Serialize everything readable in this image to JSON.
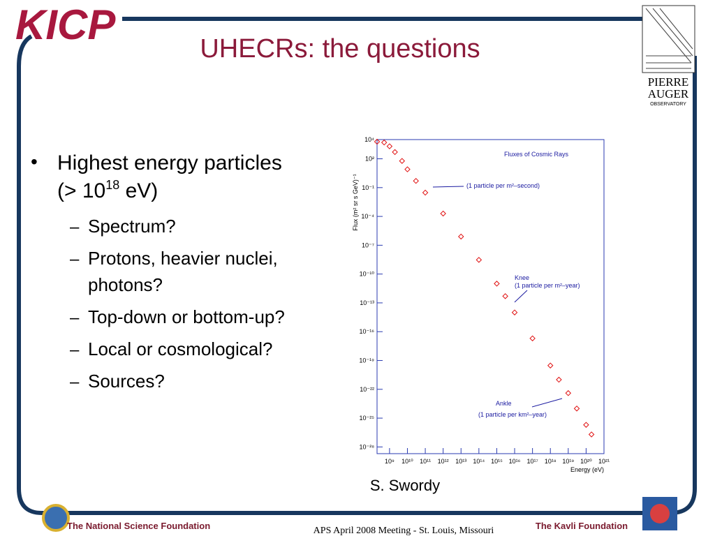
{
  "header": {
    "logo_left": "KICP",
    "title": "UHECRs: the questions",
    "logo_right": {
      "line1": "PIERRE",
      "line2": "AUGER",
      "line3": "OBSERVATORY"
    }
  },
  "bullets": [
    {
      "text": "Highest energy particles",
      "line2_start": "(> 10",
      "line2_sup": "18",
      "line2_end": " eV)",
      "subitems": [
        {
          "marker": "–",
          "lines": [
            "Spectrum?"
          ]
        },
        {
          "marker": "–",
          "lines": [
            "Protons, heavier nuclei,",
            "photons?"
          ]
        },
        {
          "marker": "–",
          "lines": [
            "Top-down or bottom-up?"
          ]
        },
        {
          "marker": "–",
          "lines": [
            "Local or cosmological?"
          ]
        },
        {
          "marker": "–",
          "lines": [
            "Sources?"
          ]
        }
      ]
    }
  ],
  "figure": {
    "credit": "S. Swordy",
    "chart_data": {
      "type": "scatter",
      "title": "Fluxes of Cosmic Rays",
      "x_label": "Energy (eV)",
      "y_label": "Flux (m² sr s GeV)⁻¹",
      "xscale": "log",
      "yscale": "log",
      "xlim": [
        200000000.0,
        1e+21
      ],
      "ylim": [
        2e-29,
        10000.0
      ],
      "xticks": [
        {
          "value": 1000000000.0,
          "label": "10⁹"
        },
        {
          "value": 10000000000.0,
          "label": "10¹⁰"
        },
        {
          "value": 100000000000.0,
          "label": "10¹¹"
        },
        {
          "value": 1000000000000.0,
          "label": "10¹²"
        },
        {
          "value": 10000000000000.0,
          "label": "10¹³"
        },
        {
          "value": 100000000000000.0,
          "label": "10¹⁴"
        },
        {
          "value": 1000000000000000.0,
          "label": "10¹⁵"
        },
        {
          "value": 1e+16,
          "label": "10¹⁶"
        },
        {
          "value": 1e+17,
          "label": "10¹⁷"
        },
        {
          "value": 1e+18,
          "label": "10¹⁸"
        },
        {
          "value": 1e+19,
          "label": "10¹⁹"
        },
        {
          "value": 1e+20,
          "label": "10²⁰"
        },
        {
          "value": 1e+21,
          "label": "10²¹"
        }
      ],
      "yticks": [
        {
          "value": 10000.0,
          "label": "10⁴"
        },
        {
          "value": 100.0,
          "label": "10²"
        },
        {
          "value": 0.1,
          "label": "10⁻¹"
        },
        {
          "value": 0.0001,
          "label": "10⁻⁴"
        },
        {
          "value": 1e-07,
          "label": "10⁻⁷"
        },
        {
          "value": 1e-10,
          "label": "10⁻¹⁰"
        },
        {
          "value": 1e-13,
          "label": "10⁻¹³"
        },
        {
          "value": 1e-16,
          "label": "10⁻¹⁶"
        },
        {
          "value": 1e-19,
          "label": "10⁻¹⁹"
        },
        {
          "value": 1e-22,
          "label": "10⁻²²"
        },
        {
          "value": 1e-25,
          "label": "10⁻²⁵"
        },
        {
          "value": 1e-28,
          "label": "10⁻²⁸"
        }
      ],
      "series": [
        {
          "color": "#e01010",
          "x": [
            200000000.0,
            500000000.0,
            1000000000.0,
            2000000000.0,
            5000000000.0,
            10000000000.0,
            30000000000.0,
            100000000000.0,
            1000000000000.0,
            10000000000000.0,
            100000000000000.0,
            1000000000000000.0,
            3000000000000000.0,
            1e+16,
            1e+17,
            1e+18,
            3e+18,
            1e+19,
            3e+19,
            1e+20,
            2e+20
          ],
          "y": [
            6000,
            5000,
            2000,
            500,
            60,
            8,
            0.5,
            0.03,
            0.0002,
            8e-07,
            3e-09,
            1e-11,
            5e-13,
            1e-14,
            2e-17,
            3e-20,
            1e-21,
            4e-23,
            1e-24,
            2e-26,
            2e-27
          ]
        }
      ],
      "annotations": {
        "a1": "(1 particle per m²–second)",
        "knee": "Knee",
        "a2": "(1 particle per m²–year)",
        "ankle": "Ankle",
        "a3": "(1 particle per km²–year)"
      }
    }
  },
  "footer": {
    "left": "The National Science Foundation",
    "center": "APS April 2008 Meeting - St. Louis, Missouri",
    "right": "The Kavli Foundation"
  }
}
